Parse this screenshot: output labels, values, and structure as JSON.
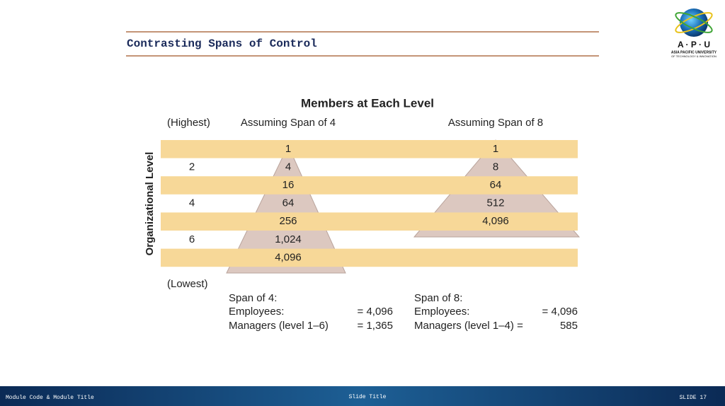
{
  "header": {
    "title": "Contrasting Spans of Control"
  },
  "logo": {
    "acronym": "A · P · U",
    "name": "ASIA PACIFIC UNIVERSITY",
    "subname": "OF TECHNOLOGY & INNOVATION"
  },
  "figure": {
    "title": "Members at Each Level",
    "top_label": "(Highest)",
    "bottom_label": "(Lowest)",
    "axis_label": "Organizational Level",
    "level_labels": [
      null,
      "2",
      null,
      "4",
      null,
      "6",
      null
    ],
    "columns": [
      {
        "header": "Assuming Span of 4",
        "values": [
          "1",
          "4",
          "16",
          "64",
          "256",
          "1,024",
          "4,096"
        ],
        "summary": {
          "title": "Span of 4:",
          "lines": [
            {
              "label": "Employees:",
              "value": "= 4,096"
            },
            {
              "label": "Managers (level 1–6)",
              "value": "= 1,365"
            }
          ]
        }
      },
      {
        "header": "Assuming Span of 8",
        "values": [
          "1",
          "8",
          "64",
          "512",
          "4,096"
        ],
        "summary": {
          "title": "Span of 8:",
          "lines": [
            {
              "label": "Employees:",
              "value": "= 4,096"
            },
            {
              "label": "Managers (level 1–4) =",
              "value": "585"
            }
          ]
        }
      }
    ]
  },
  "footer": {
    "left": "Module Code & Module Title",
    "center": "Slide Title",
    "right": "SLIDE 17"
  }
}
